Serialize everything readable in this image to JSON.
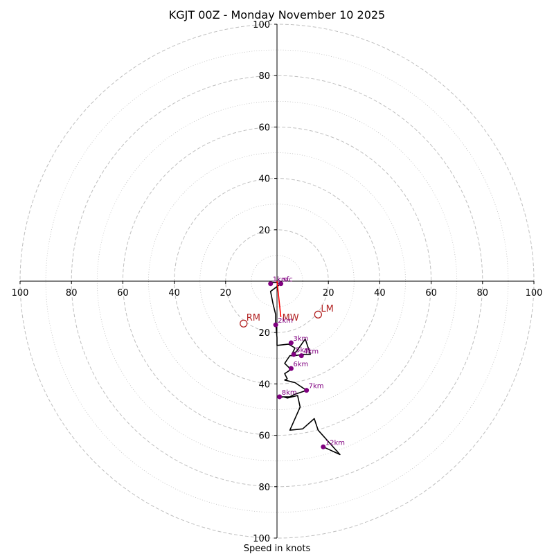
{
  "chart_data": {
    "type": "hodograph",
    "title": "KGJT 00Z - Monday November 10 2025",
    "xlabel": "Speed in knots",
    "axis_range": [
      -100,
      100
    ],
    "ring_interval": 10,
    "x_ticks": [
      -100,
      -80,
      -60,
      -40,
      -20,
      20,
      40,
      60,
      80,
      100
    ],
    "y_ticks": [
      100,
      80,
      60,
      40,
      20,
      -20,
      -40,
      -60,
      -80,
      -100
    ],
    "x_tick_labels": [
      "100",
      "80",
      "60",
      "40",
      "20",
      "20",
      "40",
      "60",
      "80",
      "100"
    ],
    "y_tick_labels": [
      "100",
      "80",
      "60",
      "40",
      "20",
      "20",
      "40",
      "60",
      "80",
      "100"
    ],
    "colors": {
      "trace": "#000000",
      "height_marker": "#800080",
      "motion": "#b22222",
      "mean_wind_vector": "#ff0000",
      "ring": "#bfbfbf",
      "axis": "#000000"
    },
    "trace": [
      [
        -2.5,
        -0.5
      ],
      [
        -0.5,
        -0.5
      ],
      [
        1.5,
        -1.0
      ],
      [
        -2.5,
        -4.0
      ],
      [
        -1.5,
        -9.0
      ],
      [
        -0.5,
        -13.0
      ],
      [
        -0.5,
        -16.0
      ],
      [
        0.0,
        -22.0
      ],
      [
        0.0,
        -25.0
      ],
      [
        4.5,
        -24.5
      ],
      [
        7.0,
        -26.0
      ],
      [
        6.0,
        -28.0
      ],
      [
        7.5,
        -27.5
      ],
      [
        11.0,
        -22.5
      ],
      [
        13.0,
        -28.5
      ],
      [
        10.0,
        -28.5
      ],
      [
        7.0,
        -29.0
      ],
      [
        5.0,
        -29.0
      ],
      [
        3.0,
        -32.0
      ],
      [
        5.0,
        -34.0
      ],
      [
        6.0,
        -34.0
      ],
      [
        3.0,
        -36.0
      ],
      [
        4.0,
        -38.0
      ],
      [
        3.0,
        -38.5
      ],
      [
        7.0,
        -39.5
      ],
      [
        11.5,
        -42.5
      ],
      [
        7.0,
        -44.0
      ],
      [
        5.0,
        -45.0
      ],
      [
        2.0,
        -45.0
      ],
      [
        0.5,
        -45.5
      ],
      [
        2.5,
        -45.0
      ],
      [
        4.0,
        -45.5
      ],
      [
        8.0,
        -44.5
      ],
      [
        9.0,
        -49.0
      ],
      [
        5.0,
        -58.0
      ],
      [
        10.0,
        -57.5
      ],
      [
        14.5,
        -53.5
      ],
      [
        16.0,
        -58.0
      ],
      [
        24.5,
        -67.5
      ],
      [
        18.0,
        -64.5
      ]
    ],
    "height_points": [
      {
        "label": "1km",
        "u": -2.5,
        "v": -1.0
      },
      {
        "label": "sfc",
        "u": 1.5,
        "v": -1.0
      },
      {
        "label": "2km",
        "u": -0.5,
        "v": -17.0
      },
      {
        "label": "3km",
        "u": 5.5,
        "v": -24.0
      },
      {
        "label": "5km",
        "u": 6.5,
        "v": -28.5
      },
      {
        "label": "4km",
        "u": 9.5,
        "v": -29.0
      },
      {
        "label": "6km",
        "u": 5.5,
        "v": -34.0
      },
      {
        "label": "7km",
        "u": 11.5,
        "v": -42.5
      },
      {
        "label": "8km",
        "u": 1.0,
        "v": -45.0
      },
      {
        "label": "12km",
        "u": 18.0,
        "v": -64.5
      }
    ],
    "storm_motion": [
      {
        "label": "RM",
        "u": -13.0,
        "v": -16.5
      },
      {
        "label": "LM",
        "u": 16.0,
        "v": -13.0
      }
    ],
    "mean_wind": {
      "label": "MW",
      "u": 1.5,
      "v": -14.0
    }
  }
}
